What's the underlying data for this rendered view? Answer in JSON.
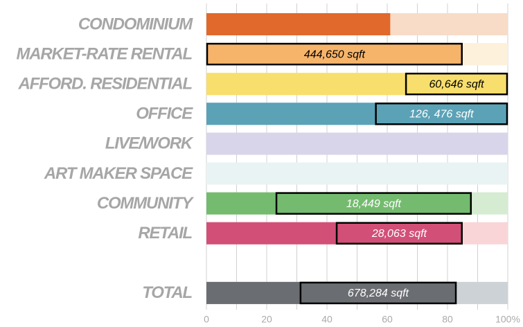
{
  "chart_data": {
    "type": "bar",
    "orientation": "horizontal",
    "categories": [
      "CONDOMINIUM",
      "MARKET-RATE RENTAL",
      "AFFORD. RESIDENTIAL",
      "OFFICE",
      "LIVE/WORK",
      "ART MAKER SPACE",
      "COMMUNITY",
      "RETAIL",
      null,
      "TOTAL"
    ],
    "values": [
      61,
      85,
      100,
      100,
      0,
      0,
      88,
      85,
      null,
      83
    ],
    "colors": [
      "#e0692b",
      "#f6b46b",
      "#f8de6c",
      "#5ba2b7",
      "#d8d4ea",
      "#e9f3f3",
      "#74bb6f",
      "#d24f78",
      null,
      "#6a6d71"
    ],
    "track_colors": [
      "#f8dcc7",
      "#fdf1dc",
      "#fbeea8",
      "#a9d0dc",
      "#d8d4ea",
      "#e9f3f3",
      "#d6ecd2",
      "#f9d5d7",
      null,
      "#cdd2d6"
    ],
    "ranges": [
      null,
      [
        0,
        85
      ],
      [
        66,
        100
      ],
      [
        56,
        100
      ],
      null,
      null,
      [
        23,
        88
      ],
      [
        43,
        85
      ],
      null,
      [
        31,
        83
      ]
    ],
    "range_labels": [
      null,
      "444,650 sqft",
      "60,646 sqft",
      "126, 476 sqft",
      null,
      null,
      "18,449 sqft",
      "28,063 sqft",
      null,
      "678,284 sqft"
    ],
    "range_label_colors": [
      null,
      "#000000",
      "#000000",
      "#ffffff",
      null,
      null,
      "#ffffff",
      "#ffffff",
      null,
      "#ffffff"
    ],
    "xlim": [
      0,
      100
    ],
    "xticks": [
      0,
      20,
      40,
      60,
      80,
      {
        "value": 100,
        "label": "100%"
      }
    ],
    "minor_xticks": [
      10,
      30,
      50,
      70,
      90
    ],
    "grid": true
  }
}
